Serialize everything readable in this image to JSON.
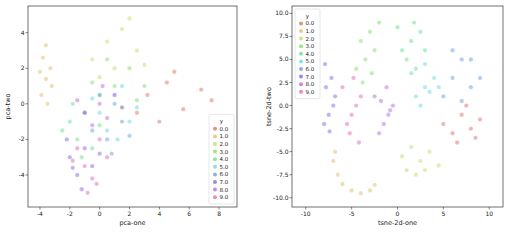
{
  "chart_data": [
    {
      "type": "scatter",
      "x_label": "pca-one",
      "y_label": "pca-two",
      "legend_title": "y",
      "legend": "lower right",
      "xlim": [
        -4.8,
        9.2
      ],
      "ylim": [
        -5.8,
        5.5
      ],
      "xticks": [
        -4,
        -2,
        0,
        2,
        4,
        6,
        8
      ],
      "yticks": [
        -4,
        -2,
        0,
        2,
        4
      ],
      "series": [
        {
          "name": "0.0",
          "color": "#db5f57",
          "x": [
            3.2,
            4.5,
            5.6,
            6.8,
            2.5,
            4.0,
            7.5,
            5.0
          ],
          "values": [
            0.5,
            1.2,
            -0.3,
            0.8,
            -0.5,
            -1.0,
            0.2,
            1.8
          ]
        },
        {
          "name": "1.0",
          "color": "#dbb657",
          "x": [
            -3.9,
            -3.6,
            -3.3,
            -3.8,
            -3.5,
            -3.2,
            -4.0,
            -3.6
          ],
          "values": [
            0.5,
            1.4,
            2.0,
            2.6,
            0.0,
            1.0,
            1.8,
            3.3
          ]
        },
        {
          "name": "2.0",
          "color": "#b3db57",
          "x": [
            -0.5,
            0.5,
            1.5,
            2.5,
            1.0,
            0.0,
            2.0,
            3.0
          ],
          "values": [
            2.5,
            3.5,
            4.2,
            3.0,
            2.0,
            1.5,
            4.8,
            2.2
          ]
        },
        {
          "name": "3.0",
          "color": "#71db57",
          "x": [
            0.0,
            1.0,
            2.0,
            3.0,
            1.5,
            0.5,
            2.5,
            -0.5
          ],
          "values": [
            0.5,
            1.0,
            2.0,
            1.0,
            -0.2,
            2.5,
            0.2,
            1.2
          ]
        },
        {
          "name": "4.0",
          "color": "#57db80",
          "x": [
            -2.0,
            -1.5,
            -1.0,
            -0.5,
            -2.5,
            -1.2,
            0.0,
            -1.8
          ],
          "values": [
            -1.0,
            -2.0,
            -0.5,
            -2.5,
            -1.5,
            -3.0,
            -1.2,
            0.0
          ]
        },
        {
          "name": "5.0",
          "color": "#57d3db",
          "x": [
            0.0,
            1.0,
            2.0,
            0.5,
            1.5,
            -0.5,
            2.5,
            1.2
          ],
          "values": [
            -0.5,
            0.5,
            -1.0,
            -1.5,
            1.0,
            0.3,
            -0.2,
            -2.0
          ]
        },
        {
          "name": "6.0",
          "color": "#5792db",
          "x": [
            -0.5,
            0.5,
            1.5,
            1.0,
            -1.0,
            0.0,
            2.0,
            0.8
          ],
          "values": [
            -1.5,
            -2.0,
            -1.0,
            0.0,
            -0.5,
            0.5,
            -1.8,
            -2.8
          ]
        },
        {
          "name": "7.0",
          "color": "#6f57db",
          "x": [
            -2.0,
            -1.5,
            -1.0,
            -0.5,
            -2.2,
            -1.2,
            0.0,
            -1.8
          ],
          "values": [
            -3.0,
            -4.0,
            -2.5,
            -3.5,
            -2.0,
            -4.8,
            -2.8,
            -3.6
          ]
        },
        {
          "name": "8.0",
          "color": "#b057db",
          "x": [
            -1.0,
            0.0,
            1.0,
            -0.5,
            0.5,
            1.5,
            -1.5,
            0.2
          ],
          "values": [
            -0.5,
            0.0,
            0.5,
            -1.2,
            -0.8,
            -0.2,
            0.2,
            1.0
          ]
        },
        {
          "name": "9.0",
          "color": "#db57b2",
          "x": [
            -1.5,
            -1.0,
            -0.5,
            0.0,
            -1.8,
            0.5,
            -0.8,
            -0.2
          ],
          "values": [
            -2.5,
            -3.5,
            -4.2,
            -2.0,
            -3.2,
            -3.0,
            -5.0,
            -4.5
          ]
        }
      ]
    },
    {
      "type": "scatter",
      "x_label": "tsne-2d-one",
      "y_label": "tsne-2d-two",
      "legend_title": "y",
      "legend": "upper left",
      "xlim": [
        -11.5,
        11.5
      ],
      "ylim": [
        -11,
        10.8
      ],
      "xticks": [
        -10,
        -5,
        0,
        5,
        10
      ],
      "yticks": [
        {
          "value": -10,
          "label": "-10.0"
        },
        {
          "value": -7.5,
          "label": "-7.5"
        },
        {
          "value": -5,
          "label": "-5.0"
        },
        {
          "value": -2.5,
          "label": "-2.5"
        },
        {
          "value": 0,
          "label": "0.0"
        },
        {
          "value": 2.5,
          "label": "2.5"
        },
        {
          "value": 5,
          "label": "5.0"
        },
        {
          "value": 7.5,
          "label": "7.5"
        },
        {
          "value": 10,
          "label": "10.0"
        }
      ],
      "series": [
        {
          "name": "0.0",
          "color": "#db5f57",
          "x": [
            5,
            6,
            7,
            8,
            9,
            6.5,
            7.5,
            8.5
          ],
          "values": [
            -2,
            -3,
            -1,
            -2.5,
            -1.5,
            -4,
            0,
            -3.5
          ]
        },
        {
          "name": "1.0",
          "color": "#dbb657",
          "x": [
            -7,
            -6.5,
            -6,
            -5,
            -4,
            -3,
            -2.5,
            -6.8
          ],
          "values": [
            -6,
            -7.5,
            -8.5,
            -9.2,
            -9.5,
            -9.2,
            -8.6,
            -5
          ]
        },
        {
          "name": "2.0",
          "color": "#b3db57",
          "x": [
            0.5,
            1.5,
            2.5,
            3.5,
            4.5,
            2,
            3,
            1
          ],
          "values": [
            -5.5,
            -4.5,
            -6,
            -5,
            -6.5,
            -7.5,
            -7,
            -7
          ]
        },
        {
          "name": "3.0",
          "color": "#71db57",
          "x": [
            -4.5,
            -3.5,
            -2.5,
            -4,
            -3,
            -2,
            -3.8,
            -2.8
          ],
          "values": [
            4,
            5,
            6,
            7,
            8,
            9,
            2.5,
            3.5
          ]
        },
        {
          "name": "4.0",
          "color": "#57db80",
          "x": [
            0.5,
            1.5,
            2.5,
            1,
            2,
            0,
            3,
            1.8
          ],
          "values": [
            6,
            7,
            8,
            5,
            4,
            8.5,
            6,
            9
          ]
        },
        {
          "name": "5.0",
          "color": "#57d3db",
          "x": [
            2,
            3,
            4,
            2.5,
            3.5,
            1.5,
            4.5,
            3
          ],
          "values": [
            1,
            2,
            3,
            0,
            1.5,
            3.5,
            2,
            4.5
          ]
        },
        {
          "name": "6.0",
          "color": "#5792db",
          "x": [
            5,
            6,
            7,
            8,
            9,
            6,
            8,
            7
          ],
          "values": [
            1,
            3,
            5,
            2,
            3,
            6,
            5,
            0.5
          ]
        },
        {
          "name": "7.0",
          "color": "#6f57db",
          "x": [
            -8,
            -7.5,
            -7,
            -6.8,
            -7.8,
            -7.2,
            -7.9,
            -7.4
          ],
          "values": [
            -2,
            -1,
            0,
            1,
            2,
            3,
            4.5,
            -2.8
          ]
        },
        {
          "name": "8.0",
          "color": "#b057db",
          "x": [
            -2,
            -1.5,
            -1,
            -0.5,
            -2.5,
            -1.2,
            -0.8,
            -1.8
          ],
          "values": [
            -3,
            -2,
            -1,
            0,
            1,
            2,
            -0.5,
            0.5
          ]
        },
        {
          "name": "9.0",
          "color": "#db57b2",
          "x": [
            -5.5,
            -5,
            -4.5,
            -4,
            -6,
            -5.2,
            -4.8,
            -4.2
          ],
          "values": [
            -2,
            -1,
            0,
            1,
            2,
            -3,
            3,
            -4
          ]
        }
      ]
    }
  ]
}
